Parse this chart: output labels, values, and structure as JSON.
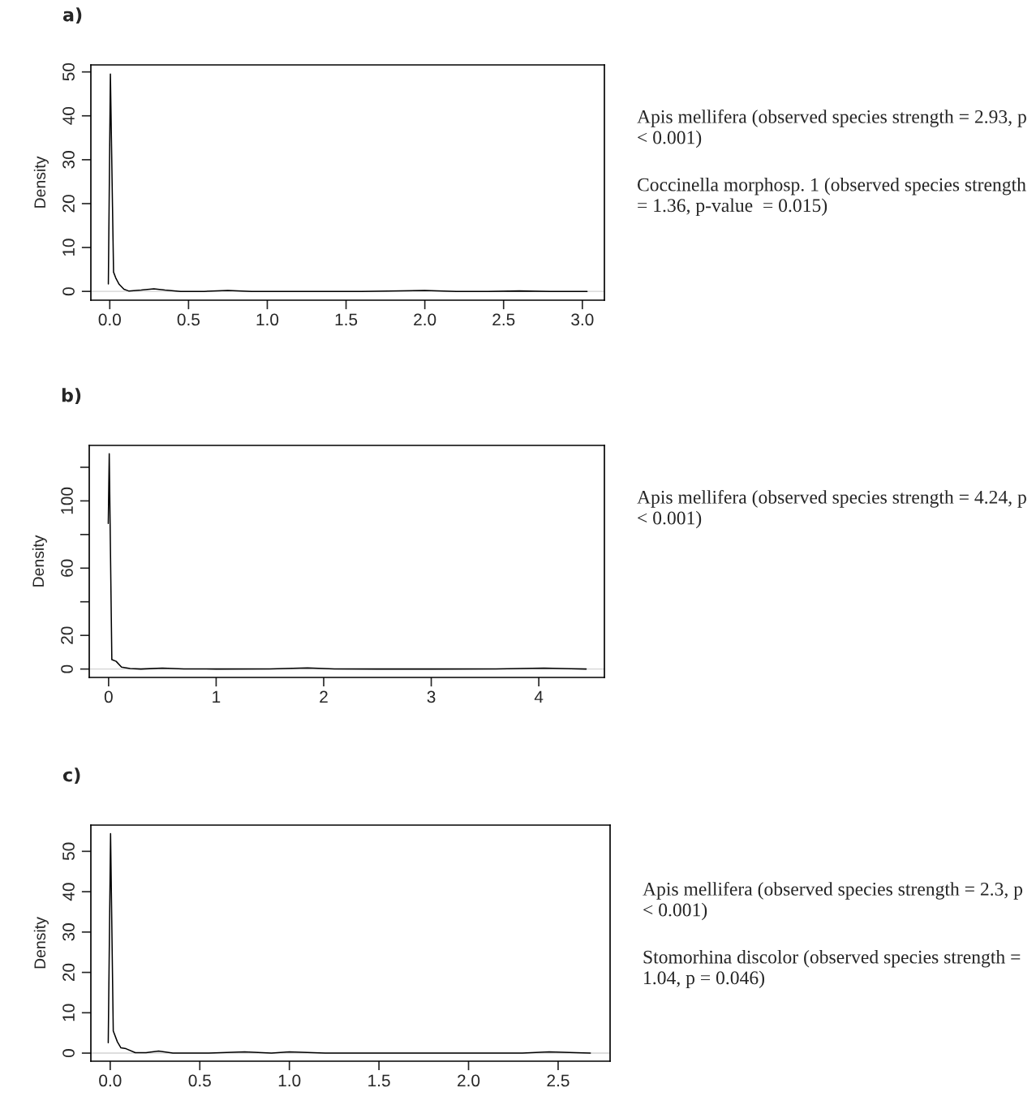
{
  "chart_data": [
    {
      "type": "line",
      "title": "a)",
      "ylabel": "Density",
      "series": [
        {
          "color": "#000000",
          "x": [
            -0.009,
            0.004,
            0.024,
            0.04,
            0.06,
            0.09,
            0.12,
            0.2,
            0.28,
            0.35,
            0.45,
            0.6,
            0.75,
            0.9,
            1.2,
            1.6,
            2.0,
            2.2,
            2.4,
            2.6,
            2.8,
            3.03
          ],
          "values": [
            1.7,
            49.5,
            4.4,
            2.9,
            1.6,
            0.5,
            0.1,
            0.3,
            0.6,
            0.3,
            0.0,
            0.0,
            0.2,
            0.0,
            0.0,
            0.0,
            0.2,
            0.0,
            0.0,
            0.1,
            0.0,
            0.0
          ]
        }
      ],
      "xlim": [
        -0.12,
        3.14
      ],
      "ylim": [
        -2.0,
        51.6
      ],
      "xticks": [
        {
          "value": 0,
          "label": "0.0"
        },
        0.5,
        {
          "value": 1,
          "label": "1.0"
        },
        1.5,
        {
          "value": 2,
          "label": "2.0"
        },
        2.5,
        {
          "value": 3,
          "label": "3.0"
        }
      ],
      "yticks": [
        0,
        10,
        20,
        30,
        40,
        50
      ],
      "ref_lines": [
        {
          "axis": "y",
          "value": 0,
          "color": "#d3d3d3"
        }
      ],
      "annotations": [
        "Apis mellifera (observed species strength = 2.93, p < 0.001)",
        "Coccinella morphosp. 1 (observed species strength = 1.36, p-value  = 0.015)"
      ]
    },
    {
      "type": "line",
      "title": "b)",
      "ylabel": "Density",
      "series": [
        {
          "color": "#000000",
          "x": [
            -0.003,
            0.006,
            0.03,
            0.07,
            0.12,
            0.2,
            0.3,
            0.5,
            0.7,
            1.0,
            1.5,
            1.85,
            2.1,
            2.5,
            3.0,
            3.6,
            4.05,
            4.3,
            4.44
          ],
          "values": [
            86.6,
            128,
            5.6,
            4.6,
            1.2,
            0.3,
            0.0,
            0.6,
            0.1,
            0.0,
            0.1,
            0.7,
            0.1,
            0.0,
            0.0,
            0.1,
            0.6,
            0.2,
            0.0
          ]
        }
      ],
      "xlim": [
        -0.18,
        4.61
      ],
      "ylim": [
        -5,
        133
      ],
      "xticks": [
        0,
        1,
        2,
        3,
        4
      ],
      "yticks": [
        0,
        20,
        {
          "value": 40,
          "label": null
        },
        60,
        {
          "value": 80,
          "label": null
        },
        100,
        {
          "value": 120,
          "label": null
        }
      ],
      "ref_lines": [
        {
          "axis": "y",
          "value": 0,
          "color": "#d3d3d3"
        }
      ],
      "annotations": [
        "Apis mellifera (observed species strength = 4.24, p < 0.001)"
      ]
    },
    {
      "type": "line",
      "title": "c)",
      "ylabel": "Density",
      "series": [
        {
          "color": "#000000",
          "x": [
            -0.011,
            0.002,
            0.017,
            0.04,
            0.06,
            0.088,
            0.14,
            0.2,
            0.27,
            0.35,
            0.55,
            0.75,
            0.9,
            1.0,
            1.2,
            1.6,
            2.0,
            2.3,
            2.45,
            2.6,
            2.68
          ],
          "values": [
            2.6,
            54.4,
            5.5,
            2.8,
            1.3,
            1.1,
            0.1,
            0.1,
            0.5,
            0.0,
            0.0,
            0.3,
            0.0,
            0.3,
            0.0,
            0.0,
            0.0,
            0.0,
            0.3,
            0.1,
            0.0
          ]
        }
      ],
      "xlim": [
        -0.108,
        2.79
      ],
      "ylim": [
        -2.0,
        56.5
      ],
      "xticks": [
        {
          "value": 0,
          "label": "0.0"
        },
        0.5,
        {
          "value": 1,
          "label": "1.0"
        },
        1.5,
        {
          "value": 2,
          "label": "2.0"
        },
        2.5
      ],
      "yticks": [
        0,
        10,
        20,
        30,
        40,
        50
      ],
      "ref_lines": [
        {
          "axis": "y",
          "value": 0,
          "color": "#d3d3d3"
        }
      ],
      "annotations": [
        "Apis mellifera (observed species strength = 2.3, p < 0.001)",
        "Stomorhina discolor (observed species strength = 1.04, p = 0.046)"
      ]
    }
  ]
}
